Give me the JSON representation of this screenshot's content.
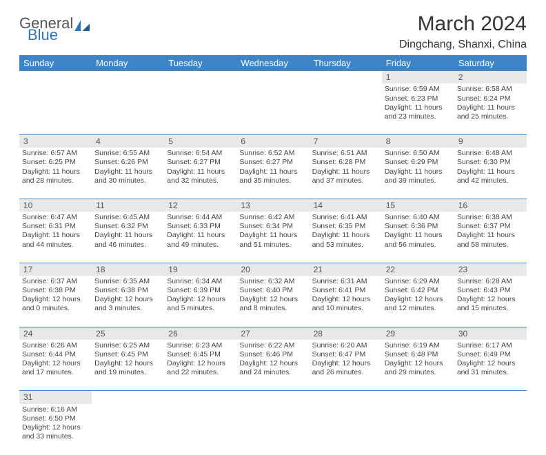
{
  "logo": {
    "text1": "General",
    "text2": "Blue"
  },
  "title": "March 2024",
  "location": "Dingchang, Shanxi, China",
  "colors": {
    "header_bg": "#3d85c6",
    "header_fg": "#ffffff",
    "daynum_bg": "#e8e8e8",
    "border": "#3d85c6",
    "logo_blue": "#2b75b9"
  },
  "day_headers": [
    "Sunday",
    "Monday",
    "Tuesday",
    "Wednesday",
    "Thursday",
    "Friday",
    "Saturday"
  ],
  "weeks": [
    [
      null,
      null,
      null,
      null,
      null,
      {
        "n": "1",
        "sr": "6:59 AM",
        "ss": "6:23 PM",
        "dl": "11 hours and 23 minutes."
      },
      {
        "n": "2",
        "sr": "6:58 AM",
        "ss": "6:24 PM",
        "dl": "11 hours and 25 minutes."
      }
    ],
    [
      {
        "n": "3",
        "sr": "6:57 AM",
        "ss": "6:25 PM",
        "dl": "11 hours and 28 minutes."
      },
      {
        "n": "4",
        "sr": "6:55 AM",
        "ss": "6:26 PM",
        "dl": "11 hours and 30 minutes."
      },
      {
        "n": "5",
        "sr": "6:54 AM",
        "ss": "6:27 PM",
        "dl": "11 hours and 32 minutes."
      },
      {
        "n": "6",
        "sr": "6:52 AM",
        "ss": "6:27 PM",
        "dl": "11 hours and 35 minutes."
      },
      {
        "n": "7",
        "sr": "6:51 AM",
        "ss": "6:28 PM",
        "dl": "11 hours and 37 minutes."
      },
      {
        "n": "8",
        "sr": "6:50 AM",
        "ss": "6:29 PM",
        "dl": "11 hours and 39 minutes."
      },
      {
        "n": "9",
        "sr": "6:48 AM",
        "ss": "6:30 PM",
        "dl": "11 hours and 42 minutes."
      }
    ],
    [
      {
        "n": "10",
        "sr": "6:47 AM",
        "ss": "6:31 PM",
        "dl": "11 hours and 44 minutes."
      },
      {
        "n": "11",
        "sr": "6:45 AM",
        "ss": "6:32 PM",
        "dl": "11 hours and 46 minutes."
      },
      {
        "n": "12",
        "sr": "6:44 AM",
        "ss": "6:33 PM",
        "dl": "11 hours and 49 minutes."
      },
      {
        "n": "13",
        "sr": "6:42 AM",
        "ss": "6:34 PM",
        "dl": "11 hours and 51 minutes."
      },
      {
        "n": "14",
        "sr": "6:41 AM",
        "ss": "6:35 PM",
        "dl": "11 hours and 53 minutes."
      },
      {
        "n": "15",
        "sr": "6:40 AM",
        "ss": "6:36 PM",
        "dl": "11 hours and 56 minutes."
      },
      {
        "n": "16",
        "sr": "6:38 AM",
        "ss": "6:37 PM",
        "dl": "11 hours and 58 minutes."
      }
    ],
    [
      {
        "n": "17",
        "sr": "6:37 AM",
        "ss": "6:38 PM",
        "dl": "12 hours and 0 minutes."
      },
      {
        "n": "18",
        "sr": "6:35 AM",
        "ss": "6:38 PM",
        "dl": "12 hours and 3 minutes."
      },
      {
        "n": "19",
        "sr": "6:34 AM",
        "ss": "6:39 PM",
        "dl": "12 hours and 5 minutes."
      },
      {
        "n": "20",
        "sr": "6:32 AM",
        "ss": "6:40 PM",
        "dl": "12 hours and 8 minutes."
      },
      {
        "n": "21",
        "sr": "6:31 AM",
        "ss": "6:41 PM",
        "dl": "12 hours and 10 minutes."
      },
      {
        "n": "22",
        "sr": "6:29 AM",
        "ss": "6:42 PM",
        "dl": "12 hours and 12 minutes."
      },
      {
        "n": "23",
        "sr": "6:28 AM",
        "ss": "6:43 PM",
        "dl": "12 hours and 15 minutes."
      }
    ],
    [
      {
        "n": "24",
        "sr": "6:26 AM",
        "ss": "6:44 PM",
        "dl": "12 hours and 17 minutes."
      },
      {
        "n": "25",
        "sr": "6:25 AM",
        "ss": "6:45 PM",
        "dl": "12 hours and 19 minutes."
      },
      {
        "n": "26",
        "sr": "6:23 AM",
        "ss": "6:45 PM",
        "dl": "12 hours and 22 minutes."
      },
      {
        "n": "27",
        "sr": "6:22 AM",
        "ss": "6:46 PM",
        "dl": "12 hours and 24 minutes."
      },
      {
        "n": "28",
        "sr": "6:20 AM",
        "ss": "6:47 PM",
        "dl": "12 hours and 26 minutes."
      },
      {
        "n": "29",
        "sr": "6:19 AM",
        "ss": "6:48 PM",
        "dl": "12 hours and 29 minutes."
      },
      {
        "n": "30",
        "sr": "6:17 AM",
        "ss": "6:49 PM",
        "dl": "12 hours and 31 minutes."
      }
    ],
    [
      {
        "n": "31",
        "sr": "6:16 AM",
        "ss": "6:50 PM",
        "dl": "12 hours and 33 minutes."
      },
      null,
      null,
      null,
      null,
      null,
      null
    ]
  ],
  "labels": {
    "sunrise": "Sunrise: ",
    "sunset": "Sunset: ",
    "daylight": "Daylight: "
  }
}
